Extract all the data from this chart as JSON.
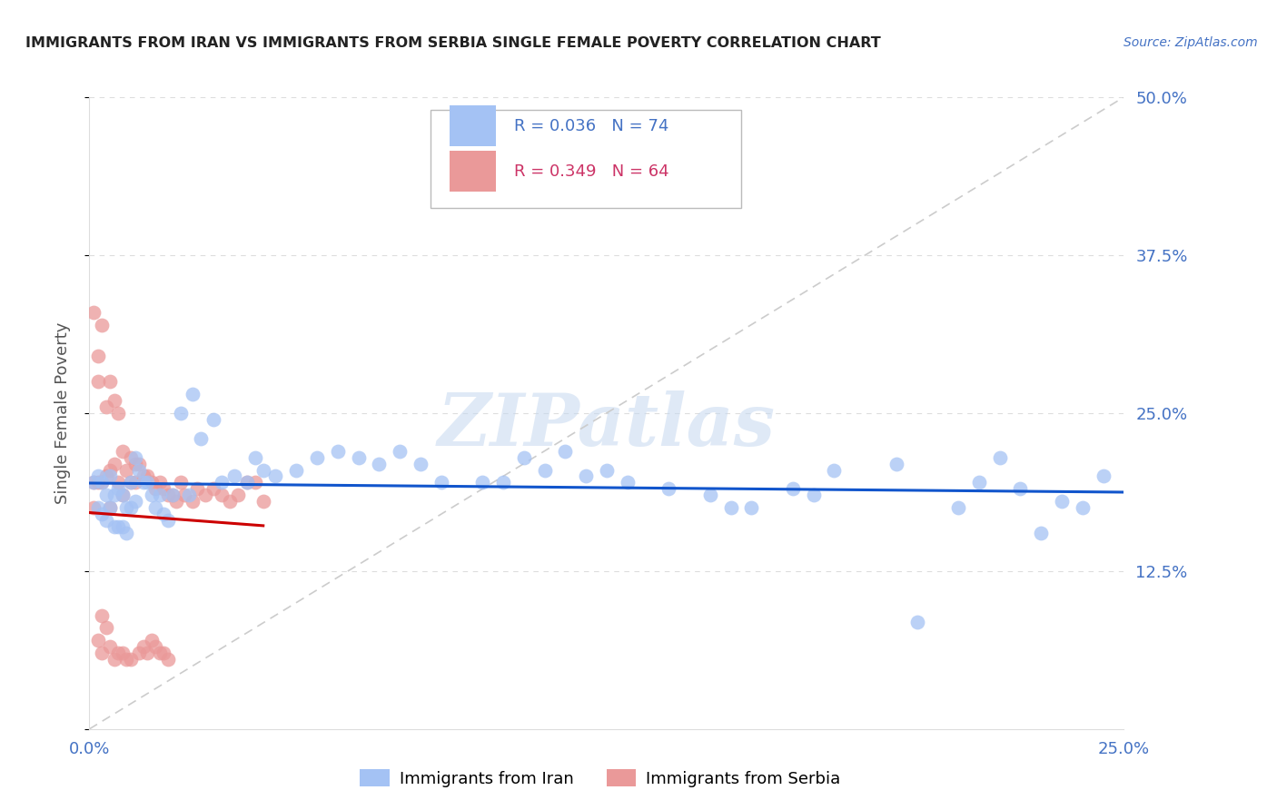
{
  "title": "IMMIGRANTS FROM IRAN VS IMMIGRANTS FROM SERBIA SINGLE FEMALE POVERTY CORRELATION CHART",
  "source": "Source: ZipAtlas.com",
  "ylabel": "Single Female Poverty",
  "xlim": [
    0.0,
    0.25
  ],
  "ylim": [
    0.0,
    0.5
  ],
  "iran_color": "#a4c2f4",
  "serbia_color": "#ea9999",
  "iran_R": 0.036,
  "iran_N": 74,
  "serbia_R": 0.349,
  "serbia_N": 64,
  "iran_line_color": "#1155cc",
  "serbia_line_color": "#cc0000",
  "diagonal_color": "#cccccc",
  "watermark": "ZIPatlas",
  "iran_scatter_x": [
    0.001,
    0.002,
    0.002,
    0.003,
    0.003,
    0.004,
    0.004,
    0.005,
    0.005,
    0.006,
    0.006,
    0.007,
    0.007,
    0.008,
    0.008,
    0.009,
    0.009,
    0.01,
    0.01,
    0.011,
    0.011,
    0.012,
    0.013,
    0.014,
    0.015,
    0.016,
    0.017,
    0.018,
    0.019,
    0.02,
    0.022,
    0.024,
    0.025,
    0.027,
    0.03,
    0.032,
    0.035,
    0.038,
    0.04,
    0.042,
    0.045,
    0.05,
    0.055,
    0.06,
    0.065,
    0.07,
    0.075,
    0.08,
    0.085,
    0.095,
    0.1,
    0.105,
    0.11,
    0.115,
    0.12,
    0.125,
    0.13,
    0.14,
    0.15,
    0.155,
    0.16,
    0.17,
    0.175,
    0.18,
    0.195,
    0.2,
    0.21,
    0.215,
    0.22,
    0.225,
    0.23,
    0.235,
    0.24,
    0.245
  ],
  "iran_scatter_y": [
    0.195,
    0.2,
    0.175,
    0.195,
    0.17,
    0.185,
    0.165,
    0.2,
    0.175,
    0.185,
    0.16,
    0.19,
    0.16,
    0.185,
    0.16,
    0.175,
    0.155,
    0.195,
    0.175,
    0.215,
    0.18,
    0.205,
    0.195,
    0.195,
    0.185,
    0.175,
    0.185,
    0.17,
    0.165,
    0.185,
    0.25,
    0.185,
    0.265,
    0.23,
    0.245,
    0.195,
    0.2,
    0.195,
    0.215,
    0.205,
    0.2,
    0.205,
    0.215,
    0.22,
    0.215,
    0.21,
    0.22,
    0.21,
    0.195,
    0.195,
    0.195,
    0.215,
    0.205,
    0.22,
    0.2,
    0.205,
    0.195,
    0.19,
    0.185,
    0.175,
    0.175,
    0.19,
    0.185,
    0.205,
    0.21,
    0.085,
    0.175,
    0.195,
    0.215,
    0.19,
    0.155,
    0.18,
    0.175,
    0.2
  ],
  "serbia_scatter_x": [
    0.001,
    0.001,
    0.001,
    0.002,
    0.002,
    0.002,
    0.002,
    0.003,
    0.003,
    0.003,
    0.003,
    0.004,
    0.004,
    0.004,
    0.005,
    0.005,
    0.005,
    0.005,
    0.006,
    0.006,
    0.006,
    0.007,
    0.007,
    0.007,
    0.008,
    0.008,
    0.008,
    0.009,
    0.009,
    0.01,
    0.01,
    0.01,
    0.011,
    0.011,
    0.012,
    0.012,
    0.013,
    0.013,
    0.014,
    0.014,
    0.015,
    0.015,
    0.016,
    0.016,
    0.017,
    0.017,
    0.018,
    0.018,
    0.019,
    0.019,
    0.02,
    0.021,
    0.022,
    0.023,
    0.025,
    0.026,
    0.028,
    0.03,
    0.032,
    0.034,
    0.036,
    0.038,
    0.04,
    0.042
  ],
  "serbia_scatter_y": [
    0.195,
    0.175,
    0.33,
    0.295,
    0.275,
    0.195,
    0.07,
    0.32,
    0.195,
    0.09,
    0.06,
    0.255,
    0.2,
    0.08,
    0.275,
    0.205,
    0.175,
    0.065,
    0.26,
    0.21,
    0.055,
    0.25,
    0.195,
    0.06,
    0.22,
    0.185,
    0.06,
    0.205,
    0.055,
    0.215,
    0.195,
    0.055,
    0.21,
    0.195,
    0.21,
    0.06,
    0.2,
    0.065,
    0.2,
    0.06,
    0.195,
    0.07,
    0.19,
    0.065,
    0.195,
    0.06,
    0.19,
    0.06,
    0.185,
    0.055,
    0.185,
    0.18,
    0.195,
    0.185,
    0.18,
    0.19,
    0.185,
    0.19,
    0.185,
    0.18,
    0.185,
    0.195,
    0.195,
    0.18
  ],
  "background_color": "#ffffff",
  "grid_color": "#dddddd",
  "tick_color": "#4472c4",
  "title_color": "#222222"
}
